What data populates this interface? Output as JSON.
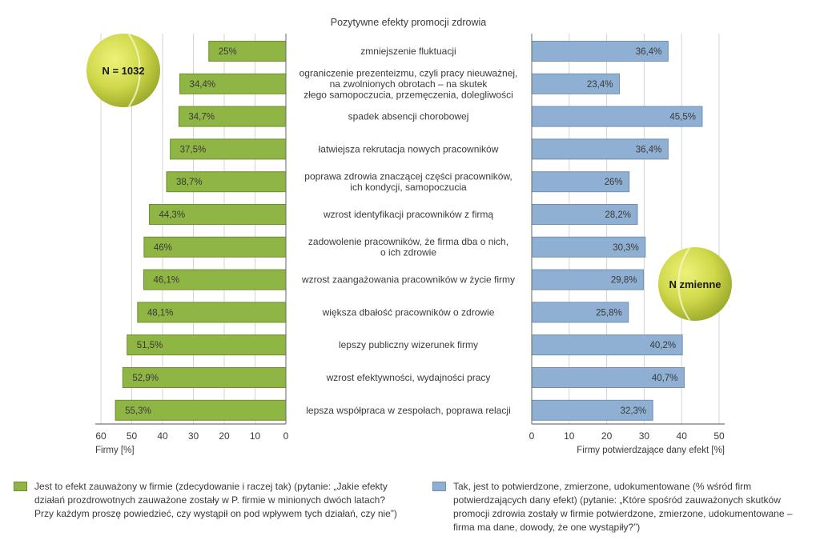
{
  "chart_data": {
    "type": "bar",
    "title": "Pozytywne efekty promocji zdrowia",
    "categories": [
      [
        "zmniejszenie fluktuacji"
      ],
      [
        "ograniczenie prezenteizmu, czyli pracy nieuważnej,",
        "na zwolnionych obrotach – na skutek",
        "złego samopoczucia, przemęczenia, dolegliwości"
      ],
      [
        "spadek absencji chorobowej"
      ],
      [
        "łatwiejsza rekrutacja nowych pracowników"
      ],
      [
        "poprawa zdrowia znaczącej części pracowników,",
        "ich kondycji, samopoczucia"
      ],
      [
        "wzrost identyfikacji pracowników z firmą"
      ],
      [
        "zadowolenie pracowników, że firma dba o nich,",
        "o ich zdrowie"
      ],
      [
        "wzrost zaangażowania pracowników w życie firmy"
      ],
      [
        "większa dbałość pracowników o zdrowie"
      ],
      [
        "lepszy publiczny wizerunek firmy"
      ],
      [
        "wzrost efektywności, wydajności pracy"
      ],
      [
        "lepsza współpraca w zespołach, poprawa relacji"
      ]
    ],
    "series": [
      {
        "values": [
          25,
          34.4,
          34.7,
          37.5,
          38.7,
          44.3,
          46,
          46.1,
          48.1,
          51.5,
          52.9,
          55.3
        ],
        "labels": [
          "25%",
          "34,4%",
          "34,7%",
          "37,5%",
          "38,7%",
          "44,3%",
          "46%",
          "46,1%",
          "48,1%",
          "51,5%",
          "52,9%",
          "55,3%"
        ],
        "color": "#8fb544",
        "xlabel": "Firmy [%]",
        "xlim": [
          0,
          60
        ],
        "ticks": [
          "60",
          "50",
          "40",
          "30",
          "20",
          "10",
          "0"
        ],
        "badge": "N = 1032"
      },
      {
        "values": [
          36.4,
          23.4,
          45.5,
          36.4,
          26,
          28.2,
          30.3,
          29.8,
          25.8,
          40.2,
          40.7,
          32.3
        ],
        "labels": [
          "36,4%",
          "23,4%",
          "45,5%",
          "36,4%",
          "26%",
          "28,2%",
          "30,3%",
          "29,8%",
          "25,8%",
          "40,2%",
          "40,7%",
          "32,3%"
        ],
        "color": "#8fb0d2",
        "xlabel": "Firmy potwierdzające dany efekt [%]",
        "xlim": [
          0,
          50
        ],
        "ticks": [
          "0",
          "10",
          "20",
          "30",
          "40",
          "50"
        ],
        "badge": "N zmienne"
      }
    ],
    "grid": true
  },
  "legend": {
    "green_text": "Jest to efekt zauważony w firmie (zdecydowanie i raczej tak) (pytanie: „Jakie efekty działań prozdrowotnych zauważone zostały w P. firmie w minionych dwóch latach? Przy każdym proszę powiedzieć, czy wystąpił on pod wpływem tych działań, czy nie”)",
    "blue_text": "Tak, jest to potwierdzone, zmierzone, udokumentowane (% wśród firm potwierdzających dany efekt) (pytanie: „Które spośród zauważonych skutków promocji zdrowia zostały w firmie potwierdzone, zmierzone, udokumentowane – firma ma dane, dowody, że one wystąpiły?”)"
  }
}
